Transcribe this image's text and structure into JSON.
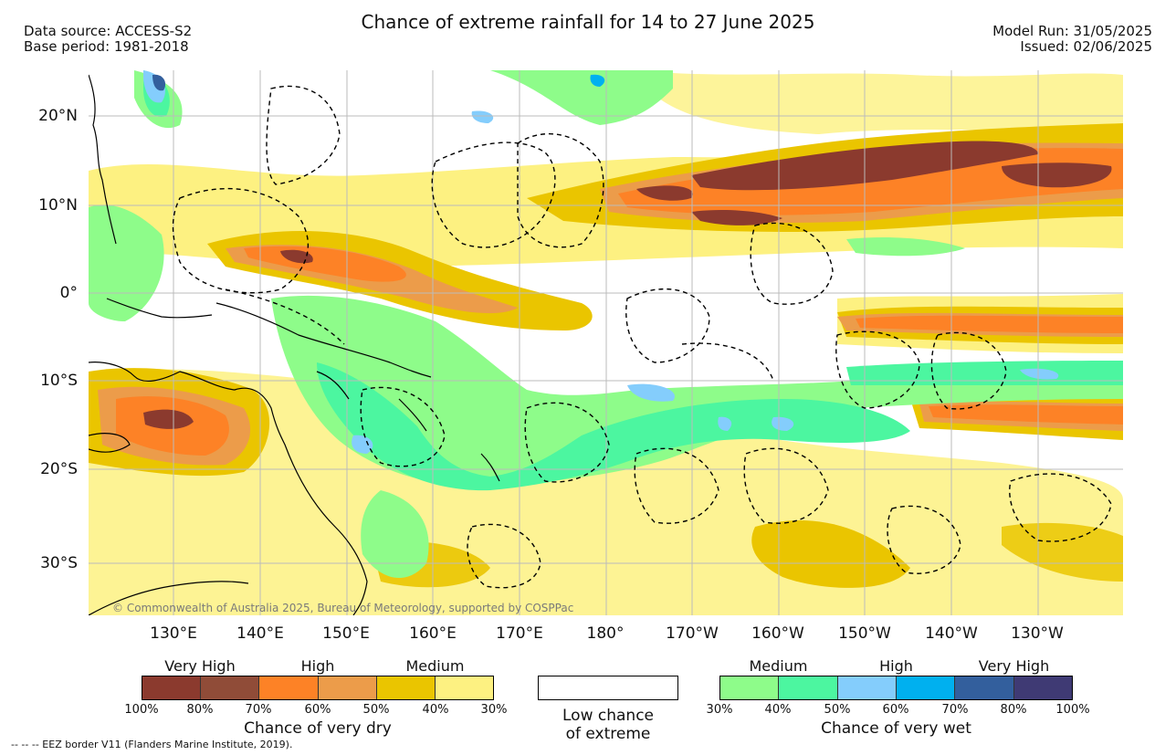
{
  "header": {
    "title": "Chance of extreme rainfall for 14 to 27 June 2025",
    "data_source": "Data source: ACCESS-S2",
    "base_period": "Base period: 1981-2018",
    "model_run": "Model Run: 31/05/2025",
    "issued": "Issued: 02/06/2025"
  },
  "map": {
    "lat_labels": [
      "20°N",
      "10°N",
      "0°",
      "10°S",
      "20°S",
      "30°S"
    ],
    "lon_labels": [
      "130°E",
      "140°E",
      "150°E",
      "160°E",
      "170°E",
      "180°",
      "170°W",
      "160°W",
      "150°W",
      "140°W",
      "130°W"
    ],
    "copyright": "© Commonwealth of Australia 2025, Bureau of Meteorology, supported by COSPPac"
  },
  "legend": {
    "dry": {
      "group_labels": [
        "Very High",
        "High",
        "Medium"
      ],
      "colors": [
        "#8b3a2e",
        "#904c38",
        "#fd8226",
        "#ec9c4a",
        "#eac500",
        "#fdf181"
      ],
      "ticks": [
        "100%",
        "80%",
        "70%",
        "60%",
        "50%",
        "40%",
        "30%"
      ],
      "caption": "Chance of very dry"
    },
    "low": {
      "line1": "Low chance",
      "line2": "of extreme",
      "color": "#ffffff"
    },
    "wet": {
      "group_labels": [
        "Medium",
        "High",
        "Very High"
      ],
      "colors": [
        "#8efc8a",
        "#4cf6a0",
        "#84cdfc",
        "#00b0ef",
        "#335f9d",
        "#3f3a74"
      ],
      "ticks": [
        "30%",
        "40%",
        "50%",
        "60%",
        "70%",
        "80%",
        "100%"
      ],
      "caption": "Chance of very wet"
    }
  },
  "footnote": "--  --  -- EEZ border V11 (Flanders Marine Institute, 2019)."
}
